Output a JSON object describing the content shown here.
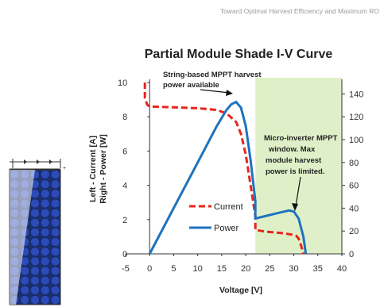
{
  "header": {
    "text": "Toward Optimal Harvest Efficiency and Maximum RO"
  },
  "colors": {
    "current": "#e8241c",
    "power": "#1e73be",
    "shade_window": "#dff0c8"
  },
  "icons": {
    "solar_module": "solar-module-icon"
  },
  "chart_data": {
    "type": "line",
    "title": "Partial Module Shade I-V Curve",
    "xlabel": "Voltage [V]",
    "ylabel_left_line1": "Left - Current [A]",
    "ylabel_left_line2": "Right - Power [W]",
    "xlim": [
      -5,
      40
    ],
    "ylim_left": [
      0,
      10
    ],
    "ylim_right": [
      0,
      150
    ],
    "x_ticks": [
      -5,
      0,
      5,
      10,
      15,
      20,
      25,
      30,
      35,
      40
    ],
    "y_left_ticks": [
      0,
      2,
      4,
      6,
      8,
      10
    ],
    "y_right_ticks": [
      0,
      20,
      40,
      60,
      80,
      100,
      120,
      140
    ],
    "grid": false,
    "legend_position": "center",
    "shaded_region": {
      "x_start": 22,
      "x_end": 40
    },
    "series": [
      {
        "name": "Current",
        "axis": "left",
        "style": "dashed",
        "x": [
          -1,
          -1,
          -0.5,
          0,
          5,
          10,
          14,
          16,
          18,
          19,
          20,
          21,
          22,
          22,
          24,
          26,
          28,
          29,
          30,
          30.5,
          31,
          31.5,
          32
        ],
        "y": [
          10,
          9.1,
          8.7,
          8.6,
          8.55,
          8.5,
          8.4,
          8.2,
          7.7,
          7.0,
          5.8,
          4.0,
          2.2,
          1.4,
          1.3,
          1.25,
          1.2,
          1.15,
          1.1,
          1.05,
          0.9,
          0.5,
          0
        ]
      },
      {
        "name": "Power",
        "axis": "right",
        "style": "solid",
        "x": [
          0,
          5,
          10,
          14,
          16,
          17,
          18,
          19,
          20,
          21,
          22,
          22,
          24,
          26,
          28,
          29,
          30,
          31,
          32,
          32.5
        ],
        "y": [
          0,
          40,
          80,
          112,
          126,
          131,
          133,
          128,
          112,
          82,
          46,
          31,
          33,
          35,
          37,
          38,
          37,
          31,
          15,
          0
        ]
      }
    ],
    "annotations": [
      {
        "lines": [
          "String-based MPPT harvest",
          "power available"
        ]
      },
      {
        "lines": [
          "Micro-inverter MPPT",
          "window. Max",
          "module harvest",
          "power is limited."
        ]
      }
    ]
  }
}
